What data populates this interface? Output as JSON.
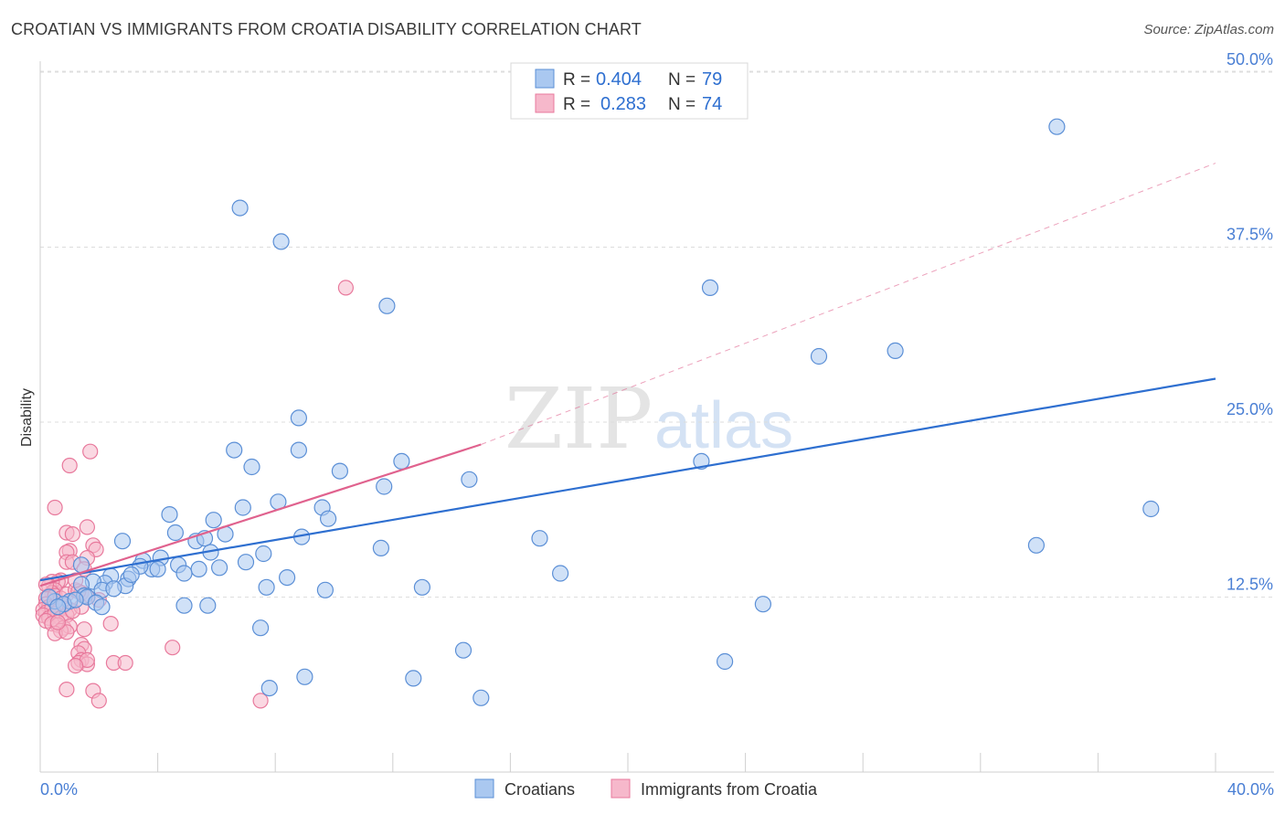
{
  "title": "CROATIAN VS IMMIGRANTS FROM CROATIA DISABILITY CORRELATION CHART",
  "source": "Source: ZipAtlas.com",
  "watermark": {
    "zip": "ZIP",
    "atlas": "atlas"
  },
  "colors": {
    "blue_fill": "#aac8f0",
    "blue_stroke": "#5b8fd6",
    "blue_line": "#2e6fd0",
    "pink_fill": "#f6b8cb",
    "pink_stroke": "#e8799c",
    "pink_line": "#e0628e",
    "grid": "#dddddd",
    "tick_text": "#4a7fd4"
  },
  "legend": {
    "rows": [
      {
        "r_label": "R =",
        "r_value": "0.404",
        "n_label": "N =",
        "n_value": "79",
        "color": "blue"
      },
      {
        "r_label": "R =",
        "r_value": "0.283",
        "n_label": "N =",
        "n_value": "74",
        "color": "pink"
      }
    ]
  },
  "chart_data": {
    "type": "scatter",
    "title": "CROATIAN VS IMMIGRANTS FROM CROATIA DISABILITY CORRELATION CHART",
    "xlabel": "",
    "ylabel": "Disability",
    "xlim": [
      0,
      40
    ],
    "ylim": [
      0,
      52
    ],
    "x_tick_labels": [
      "0.0%",
      "40.0%"
    ],
    "y_ticks": [
      12.5,
      25.0,
      37.5,
      50.0
    ],
    "y_tick_labels": [
      "12.5%",
      "25.0%",
      "37.5%",
      "50.0%"
    ],
    "grid": true,
    "legend_position": "top-center",
    "series": [
      {
        "name": "Croatians",
        "color": "blue",
        "trend": {
          "x": [
            0,
            40
          ],
          "y": [
            13.7,
            28.1
          ],
          "style": "solid"
        },
        "points": [
          [
            6.8,
            40.3
          ],
          [
            8.2,
            37.9
          ],
          [
            11.8,
            33.3
          ],
          [
            22.8,
            34.6
          ],
          [
            26.5,
            29.7
          ],
          [
            29.1,
            30.1
          ],
          [
            34.6,
            46.1
          ],
          [
            8.8,
            25.3
          ],
          [
            6.6,
            23.0
          ],
          [
            7.2,
            21.8
          ],
          [
            8.8,
            23.0
          ],
          [
            10.2,
            21.5
          ],
          [
            12.3,
            22.2
          ],
          [
            11.7,
            20.4
          ],
          [
            14.6,
            20.9
          ],
          [
            22.5,
            22.2
          ],
          [
            37.8,
            18.8
          ],
          [
            4.4,
            18.4
          ],
          [
            5.9,
            18.0
          ],
          [
            6.9,
            18.9
          ],
          [
            8.1,
            19.3
          ],
          [
            9.6,
            18.9
          ],
          [
            9.8,
            18.1
          ],
          [
            4.6,
            17.1
          ],
          [
            5.3,
            16.5
          ],
          [
            5.6,
            16.7
          ],
          [
            6.3,
            17.0
          ],
          [
            8.9,
            16.8
          ],
          [
            17.0,
            16.7
          ],
          [
            11.6,
            16.0
          ],
          [
            33.9,
            16.2
          ],
          [
            2.8,
            16.5
          ],
          [
            3.5,
            15.1
          ],
          [
            4.1,
            15.3
          ],
          [
            4.7,
            14.8
          ],
          [
            5.8,
            15.7
          ],
          [
            7.6,
            15.6
          ],
          [
            7.0,
            15.0
          ],
          [
            5.4,
            14.5
          ],
          [
            4.9,
            14.2
          ],
          [
            3.8,
            14.5
          ],
          [
            3.4,
            14.7
          ],
          [
            4.0,
            14.5
          ],
          [
            2.4,
            14.0
          ],
          [
            3.0,
            13.8
          ],
          [
            2.2,
            13.5
          ],
          [
            1.8,
            13.6
          ],
          [
            1.4,
            13.4
          ],
          [
            2.9,
            13.3
          ],
          [
            7.7,
            13.2
          ],
          [
            8.4,
            13.9
          ],
          [
            9.7,
            13.0
          ],
          [
            13.0,
            13.2
          ],
          [
            17.7,
            14.2
          ],
          [
            1.4,
            14.8
          ],
          [
            1.5,
            12.6
          ],
          [
            2.1,
            13.0
          ],
          [
            1.0,
            12.2
          ],
          [
            1.6,
            12.5
          ],
          [
            1.9,
            12.1
          ],
          [
            2.1,
            11.8
          ],
          [
            0.5,
            12.2
          ],
          [
            0.8,
            12.0
          ],
          [
            0.3,
            12.5
          ],
          [
            0.6,
            11.8
          ],
          [
            1.2,
            12.3
          ],
          [
            4.9,
            11.9
          ],
          [
            5.7,
            11.9
          ],
          [
            7.5,
            10.3
          ],
          [
            24.6,
            12.0
          ],
          [
            14.4,
            8.7
          ],
          [
            23.3,
            7.9
          ],
          [
            7.8,
            6.0
          ],
          [
            9.0,
            6.8
          ],
          [
            12.7,
            6.7
          ],
          [
            15.0,
            5.3
          ],
          [
            2.5,
            13.1
          ],
          [
            6.1,
            14.6
          ],
          [
            3.1,
            14.1
          ]
        ]
      },
      {
        "name": "Immigrants from Croatia",
        "color": "pink",
        "trend": {
          "x": [
            0,
            15
          ],
          "y": [
            13.3,
            23.4
          ],
          "style": "solid",
          "extended_x": [
            15,
            40
          ],
          "extended_y": [
            23.4,
            43.5
          ],
          "extended_style": "dashed"
        },
        "points": [
          [
            10.4,
            34.6
          ],
          [
            1.7,
            22.9
          ],
          [
            1.0,
            21.9
          ],
          [
            0.5,
            18.9
          ],
          [
            1.6,
            17.5
          ],
          [
            0.9,
            17.1
          ],
          [
            1.1,
            17.0
          ],
          [
            1.8,
            16.2
          ],
          [
            1.9,
            15.9
          ],
          [
            1.0,
            15.8
          ],
          [
            0.9,
            15.7
          ],
          [
            1.6,
            15.3
          ],
          [
            0.9,
            15.0
          ],
          [
            1.1,
            15.0
          ],
          [
            0.7,
            13.7
          ],
          [
            0.6,
            13.6
          ],
          [
            0.4,
            13.6
          ],
          [
            0.3,
            13.3
          ],
          [
            0.5,
            13.0
          ],
          [
            0.4,
            12.8
          ],
          [
            0.3,
            12.6
          ],
          [
            0.2,
            12.4
          ],
          [
            0.5,
            12.6
          ],
          [
            0.7,
            12.4
          ],
          [
            0.9,
            12.7
          ],
          [
            1.2,
            13.0
          ],
          [
            1.4,
            12.8
          ],
          [
            1.6,
            12.5
          ],
          [
            0.2,
            12.0
          ],
          [
            0.3,
            11.8
          ],
          [
            0.1,
            11.6
          ],
          [
            0.2,
            11.4
          ],
          [
            0.4,
            11.7
          ],
          [
            0.6,
            11.5
          ],
          [
            0.8,
            11.9
          ],
          [
            1.0,
            11.6
          ],
          [
            0.1,
            11.2
          ],
          [
            0.3,
            11.0
          ],
          [
            0.5,
            11.3
          ],
          [
            0.7,
            11.0
          ],
          [
            0.9,
            11.2
          ],
          [
            0.2,
            10.8
          ],
          [
            0.4,
            10.6
          ],
          [
            0.6,
            10.5
          ],
          [
            0.8,
            10.3
          ],
          [
            1.0,
            10.4
          ],
          [
            0.7,
            10.1
          ],
          [
            0.5,
            9.9
          ],
          [
            0.9,
            10.0
          ],
          [
            1.4,
            11.8
          ],
          [
            1.3,
            12.9
          ],
          [
            1.5,
            10.2
          ],
          [
            2.4,
            10.6
          ],
          [
            1.4,
            9.1
          ],
          [
            1.5,
            8.8
          ],
          [
            1.3,
            8.5
          ],
          [
            1.4,
            8.0
          ],
          [
            1.3,
            7.8
          ],
          [
            1.6,
            7.7
          ],
          [
            1.6,
            8.0
          ],
          [
            2.5,
            7.8
          ],
          [
            2.9,
            7.8
          ],
          [
            1.2,
            7.6
          ],
          [
            0.9,
            5.9
          ],
          [
            1.8,
            5.8
          ],
          [
            2.0,
            5.1
          ],
          [
            7.5,
            5.1
          ],
          [
            4.5,
            8.9
          ],
          [
            1.5,
            14.5
          ],
          [
            1.2,
            13.7
          ],
          [
            2.0,
            12.3
          ],
          [
            0.2,
            13.4
          ],
          [
            0.6,
            10.7
          ],
          [
            1.1,
            11.5
          ]
        ]
      }
    ]
  }
}
